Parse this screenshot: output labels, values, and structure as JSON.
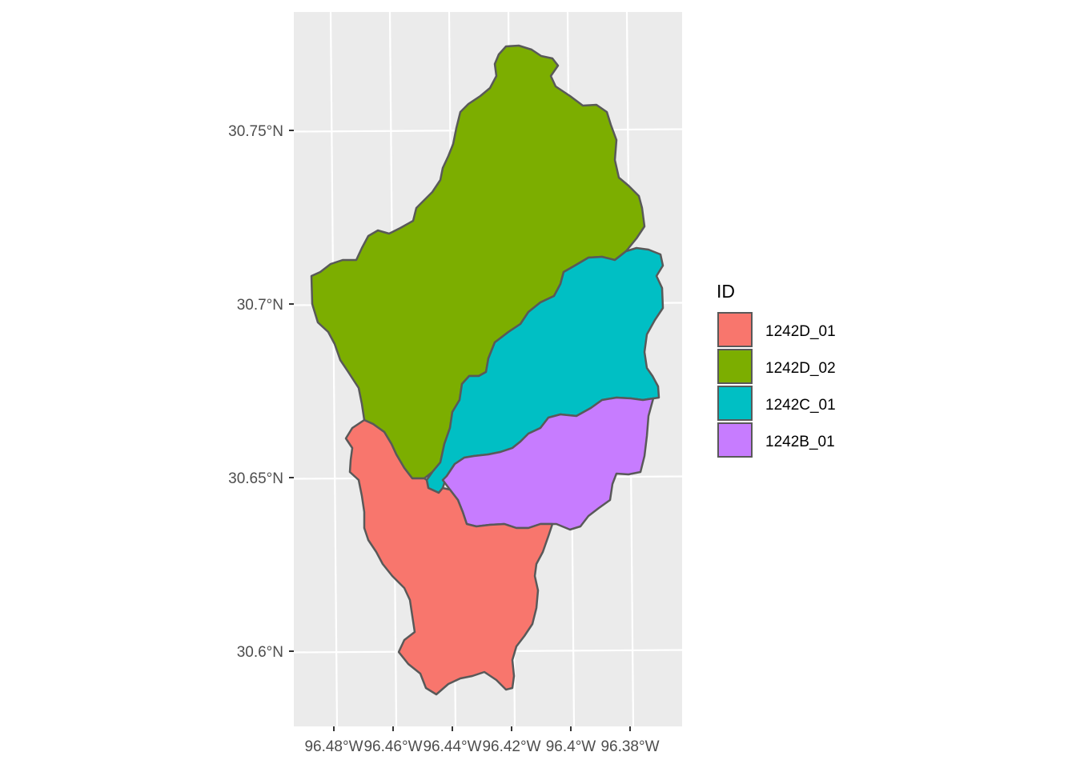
{
  "map": {
    "type": "choropleth",
    "panel_background": "#ebebeb",
    "grid_color": "#ffffff",
    "border_color": "#595959",
    "x_axis": {
      "ticks": [
        {
          "value": -96.48,
          "label": "96.48°W"
        },
        {
          "value": -96.46,
          "label": "96.46°W"
        },
        {
          "value": -96.44,
          "label": "96.44°W"
        },
        {
          "value": -96.42,
          "label": "96.42°W"
        },
        {
          "value": -96.4,
          "label": "96.4°W"
        },
        {
          "value": -96.38,
          "label": "96.38°W"
        }
      ]
    },
    "y_axis": {
      "ticks": [
        {
          "value": 30.6,
          "label": "30.6°N"
        },
        {
          "value": 30.65,
          "label": "30.65°N"
        },
        {
          "value": 30.7,
          "label": "30.7°N"
        },
        {
          "value": 30.75,
          "label": "30.75°N"
        }
      ]
    },
    "legend": {
      "title": "ID",
      "position": "right",
      "items": [
        {
          "id": "1242D_01",
          "label": "1242D_01",
          "color": "#F8766D"
        },
        {
          "id": "1242D_02",
          "label": "1242D_02",
          "color": "#7CAE00"
        },
        {
          "id": "1242C_01",
          "label": "1242C_01",
          "color": "#00BFC4"
        },
        {
          "id": "1242B_01",
          "label": "1242B_01",
          "color": "#C77CFF"
        }
      ]
    },
    "regions": [
      {
        "id": "1242D_02",
        "color": "#7CAE00"
      },
      {
        "id": "1242C_01",
        "color": "#00BFC4"
      },
      {
        "id": "1242B_01",
        "color": "#C77CFF"
      },
      {
        "id": "1242D_01",
        "color": "#F8766D"
      }
    ]
  }
}
